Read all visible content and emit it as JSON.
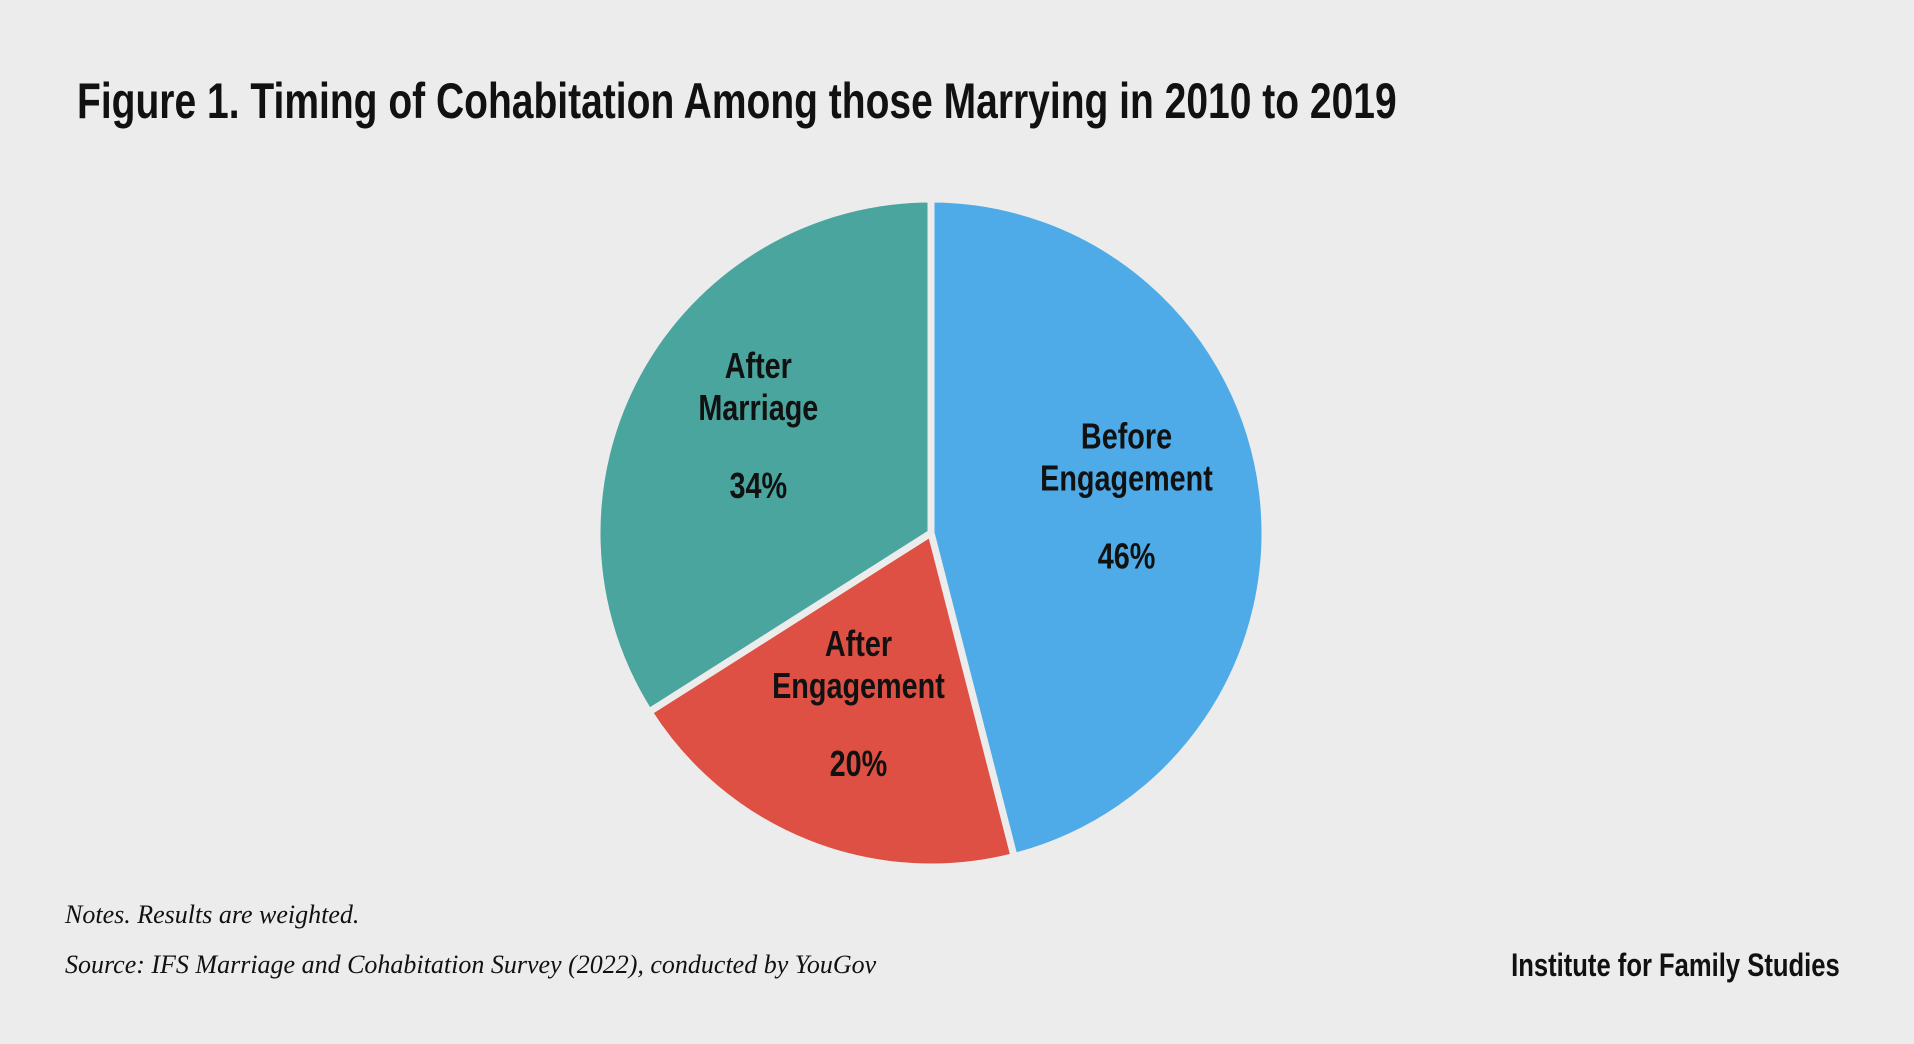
{
  "chart_data": {
    "type": "pie",
    "title": "Figure 1. Timing of Cohabitation Among those Marrying in 2010 to 2019",
    "slices": [
      {
        "label_lines": [
          "Before",
          "Engagement"
        ],
        "value": 46,
        "value_label": "46%",
        "color": "#4fabe7"
      },
      {
        "label_lines": [
          "After",
          "Engagement"
        ],
        "value": 20,
        "value_label": "20%",
        "color": "#de5043"
      },
      {
        "label_lines": [
          "After",
          "Marriage"
        ],
        "value": 34,
        "value_label": "34%",
        "color": "#4aa59e"
      }
    ],
    "start": "top",
    "direction": "clockwise"
  },
  "footer": {
    "notes": "Notes. Results are weighted.",
    "source": "Source: IFS Marriage and Cohabitation Survey (2022), conducted by YouGov",
    "brand": "Institute for Family Studies"
  }
}
